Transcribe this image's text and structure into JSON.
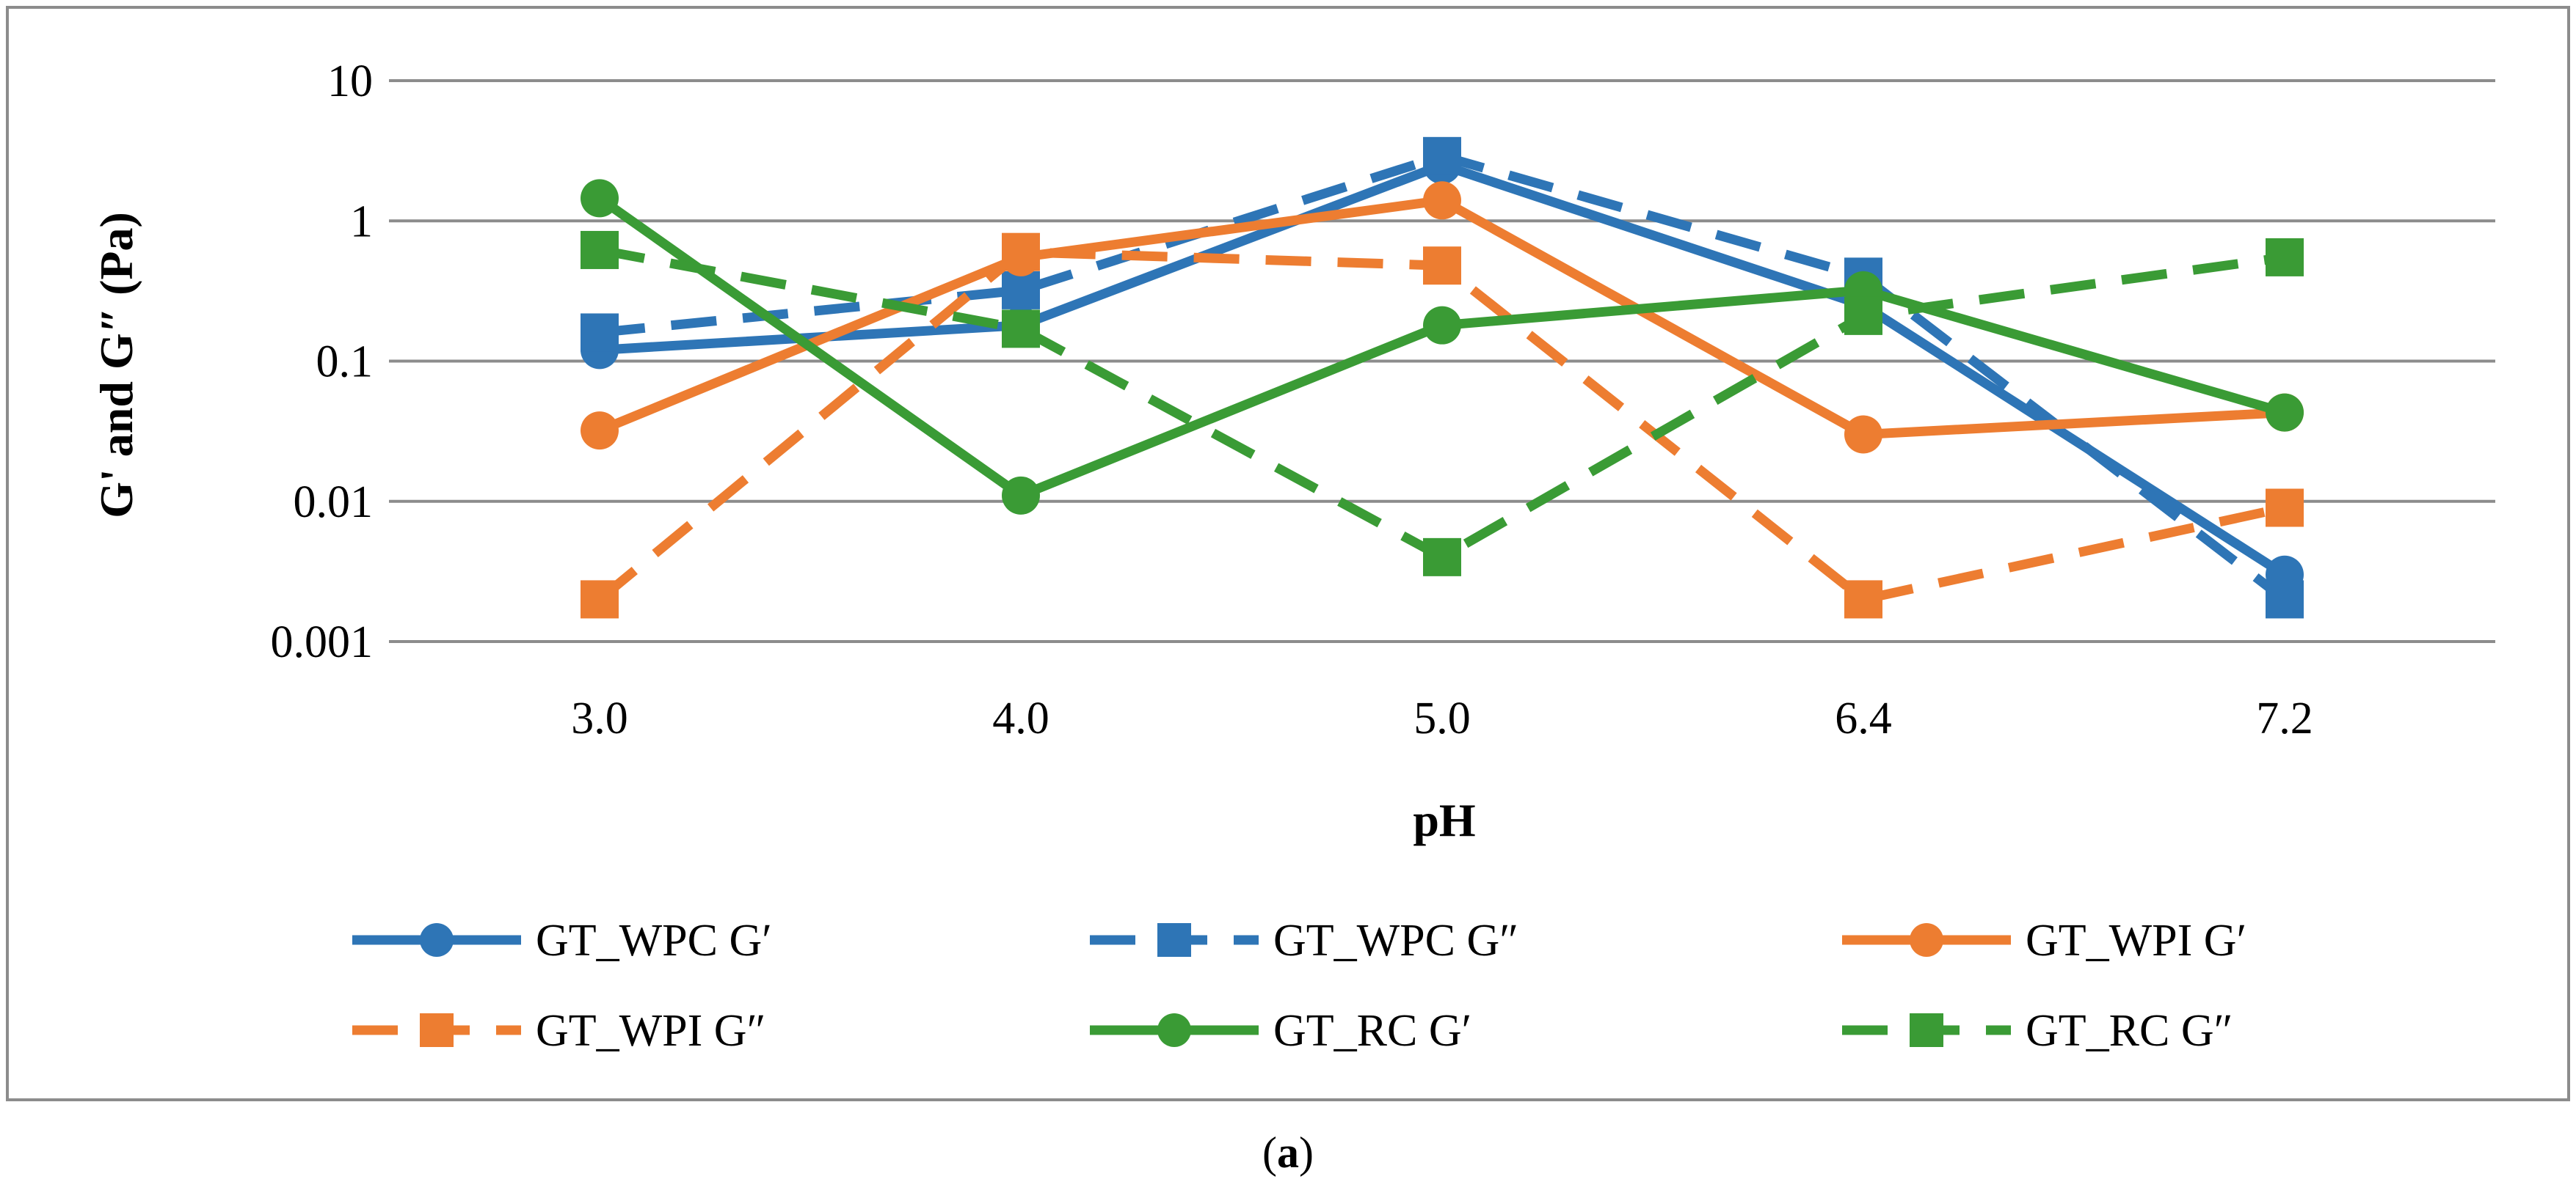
{
  "chart_data": {
    "type": "line",
    "x_scale": "category",
    "y_scale": "log",
    "categories": [
      "3.0",
      "4.0",
      "5.0",
      "6.4",
      "7.2"
    ],
    "ylim": [
      0.001,
      10
    ],
    "y_ticks": [
      0.001,
      0.01,
      0.1,
      1,
      10
    ],
    "y_tick_labels": [
      "0.001",
      "0.01",
      "0.1",
      "1",
      "10"
    ],
    "xlabel": "pH",
    "ylabel": "G' and G″ (Pa)",
    "grid": true,
    "legend_position": "bottom",
    "series": [
      {
        "name": "GT_WPC G′",
        "color": "#2e75b6",
        "dashed": false,
        "marker": "circle",
        "values": [
          0.12,
          0.18,
          2.5,
          0.25,
          0.003
        ]
      },
      {
        "name": "GT_WPC G″",
        "color": "#2e75b6",
        "dashed": true,
        "marker": "square",
        "values": [
          0.16,
          0.32,
          2.9,
          0.4,
          0.002
        ]
      },
      {
        "name": "GT_WPI G′",
        "color": "#ed7d31",
        "dashed": false,
        "marker": "circle",
        "values": [
          0.032,
          0.55,
          1.4,
          0.03,
          0.043
        ]
      },
      {
        "name": "GT_WPI G″",
        "color": "#ed7d31",
        "dashed": true,
        "marker": "square",
        "values": [
          0.002,
          0.6,
          0.48,
          0.002,
          0.009
        ]
      },
      {
        "name": "GT_RC G′",
        "color": "#3a9b35",
        "dashed": false,
        "marker": "circle",
        "values": [
          1.45,
          0.011,
          0.18,
          0.32,
          0.043
        ]
      },
      {
        "name": "GT_RC G″",
        "color": "#3a9b35",
        "dashed": true,
        "marker": "square",
        "values": [
          0.62,
          0.17,
          0.004,
          0.21,
          0.55
        ]
      }
    ]
  },
  "caption": {
    "prefix": "(",
    "letter": "a",
    "suffix": ")"
  }
}
